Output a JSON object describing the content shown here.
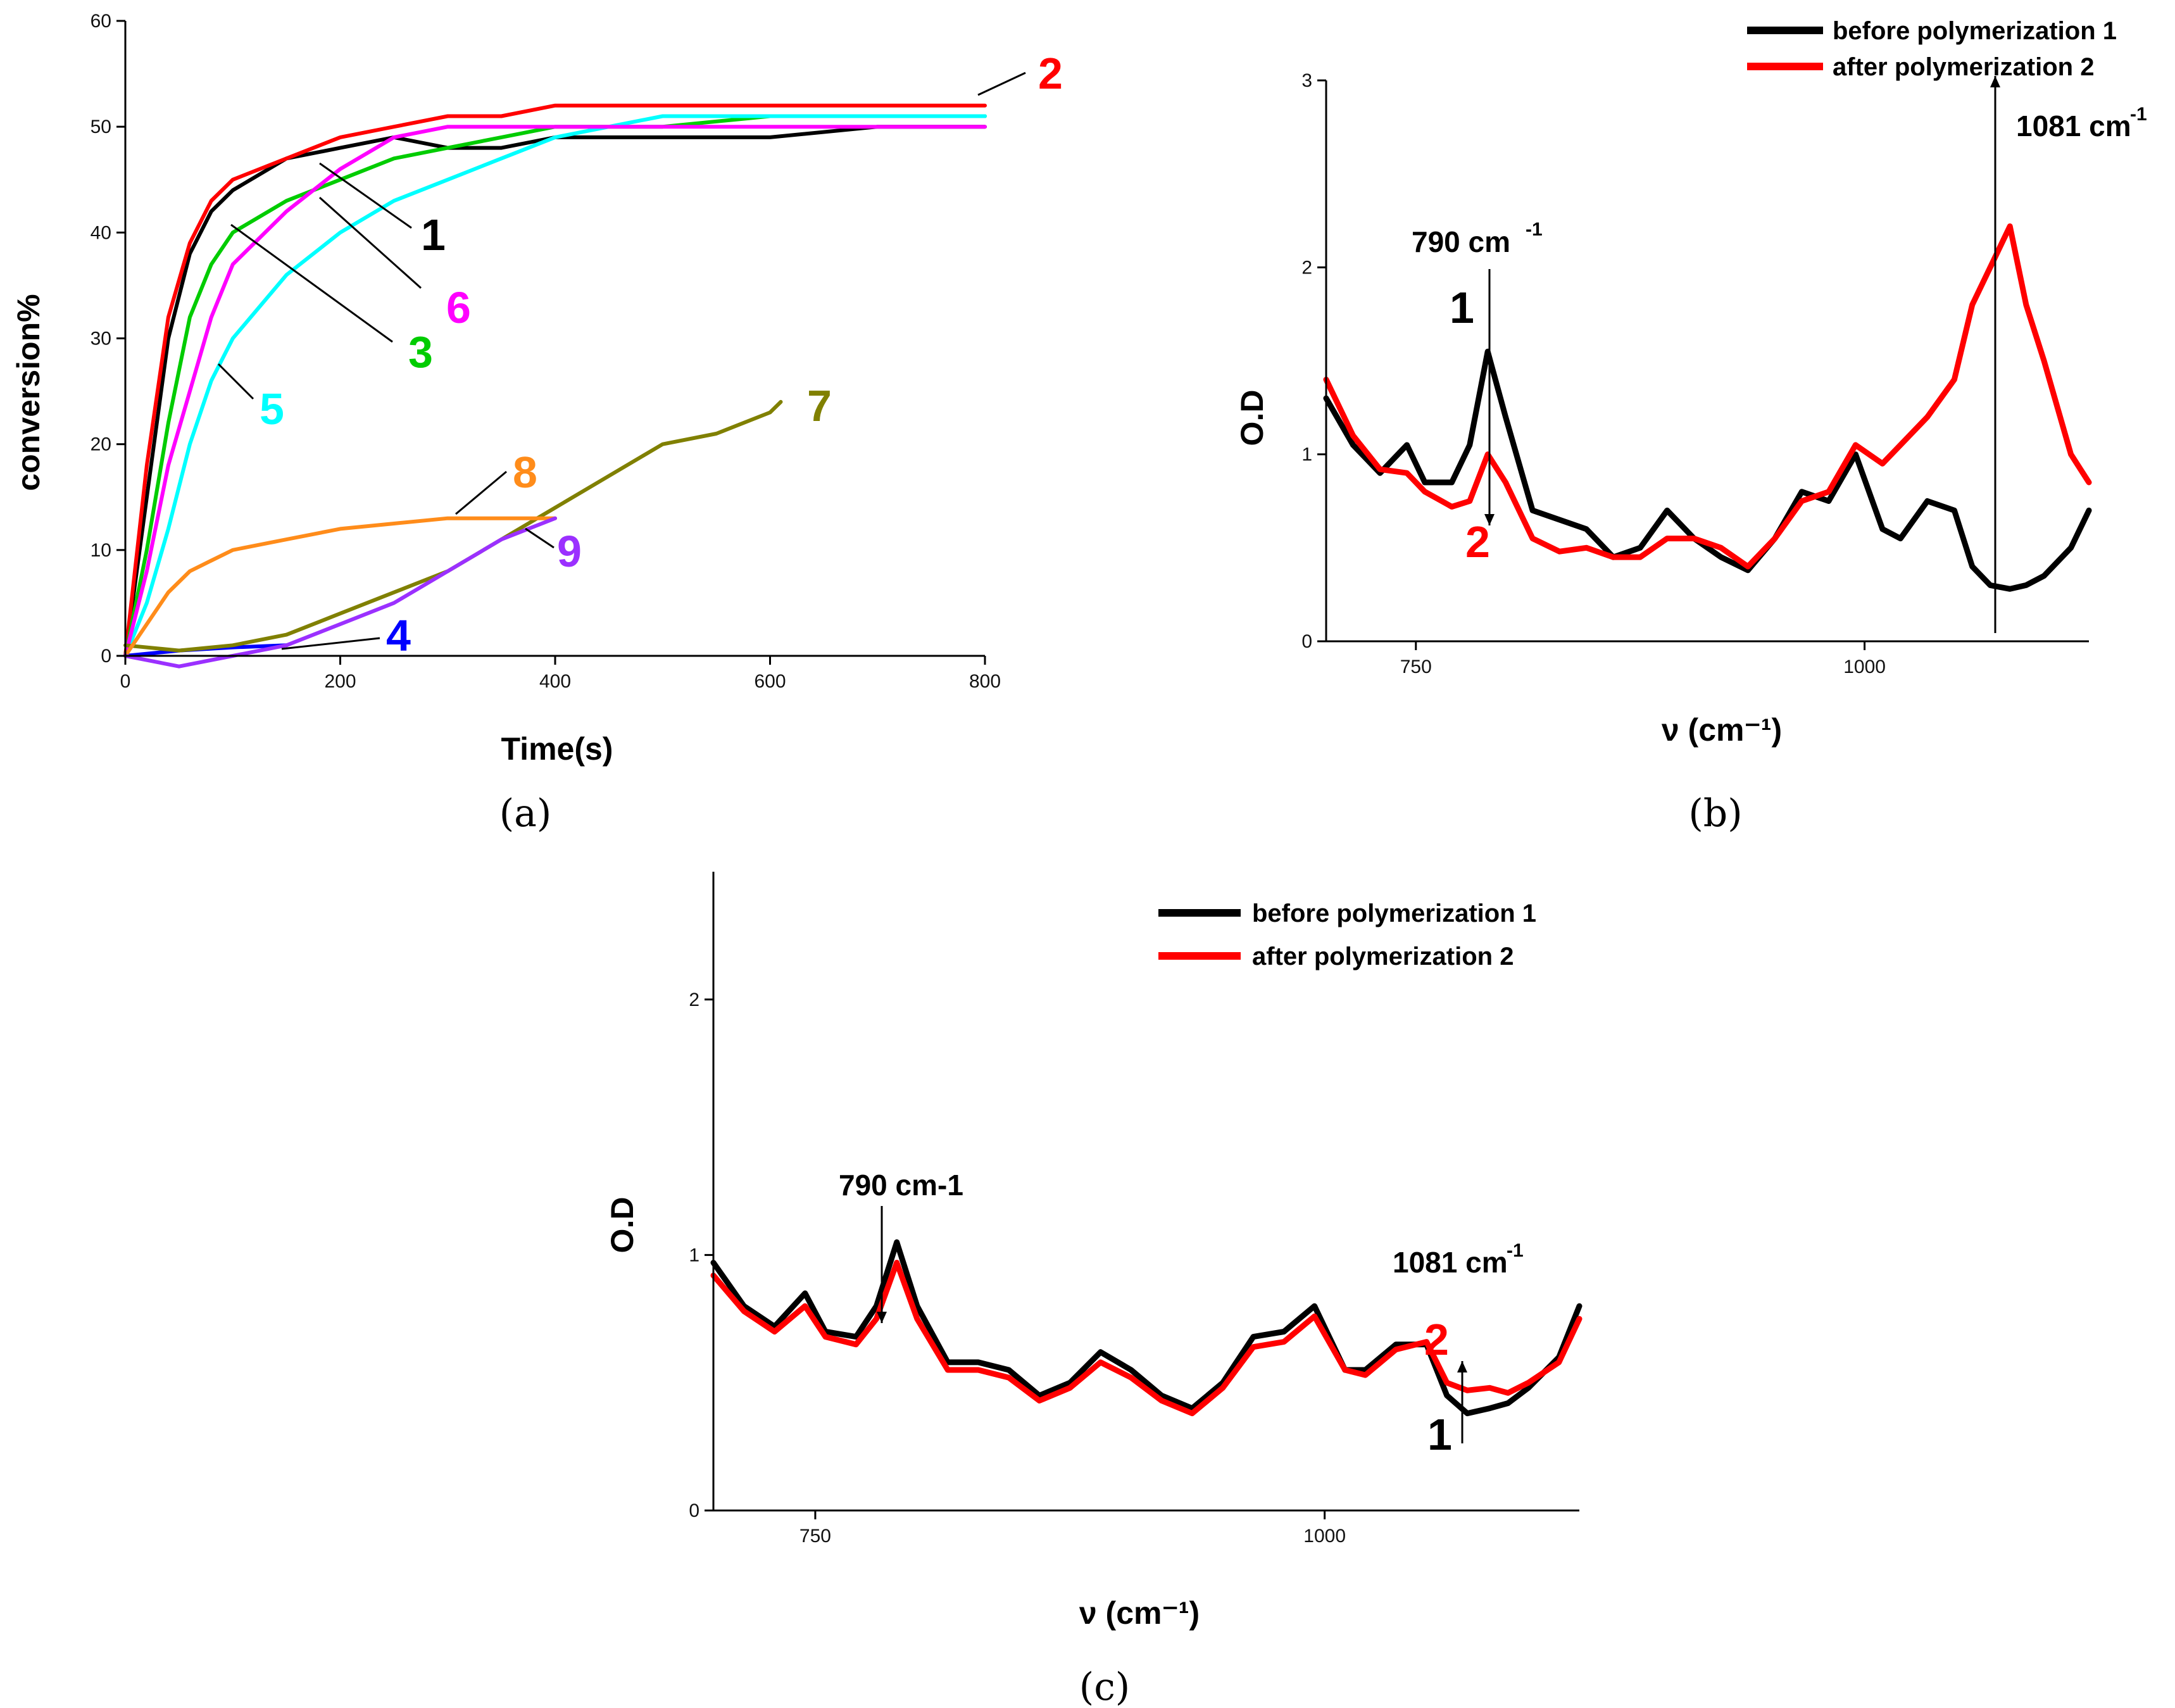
{
  "chart_data": [
    {
      "panel": "(a)",
      "type": "line",
      "title": "",
      "xlabel": "Time(s)",
      "ylabel": "conversion%",
      "xlim": [
        0,
        800
      ],
      "ylim": [
        0,
        60
      ],
      "xticks": [
        0,
        200,
        400,
        600,
        800
      ],
      "yticks": [
        0,
        10,
        20,
        30,
        40,
        50,
        60
      ],
      "grid": false,
      "series": [
        {
          "label": "1",
          "color": "#000000",
          "x": [
            0,
            20,
            40,
            60,
            80,
            100,
            150,
            200,
            250,
            300,
            350,
            400,
            500,
            600,
            700,
            800
          ],
          "y": [
            0,
            15,
            30,
            38,
            42,
            44,
            47,
            48,
            49,
            48,
            48,
            49,
            49,
            49,
            50,
            50
          ]
        },
        {
          "label": "2",
          "color": "#ff0000",
          "x": [
            0,
            20,
            40,
            60,
            80,
            100,
            150,
            200,
            250,
            300,
            350,
            400,
            500,
            600,
            700,
            800
          ],
          "y": [
            0,
            18,
            32,
            39,
            43,
            45,
            47,
            49,
            50,
            51,
            51,
            52,
            52,
            52,
            52,
            52
          ]
        },
        {
          "label": "3",
          "color": "#00cc00",
          "x": [
            0,
            20,
            40,
            60,
            80,
            100,
            150,
            200,
            250,
            300,
            350,
            400,
            500,
            600,
            700,
            800
          ],
          "y": [
            0,
            10,
            22,
            32,
            37,
            40,
            43,
            45,
            47,
            48,
            49,
            50,
            50,
            51,
            51,
            51
          ]
        },
        {
          "label": "4",
          "color": "#0000ff",
          "x": [
            0,
            50,
            100,
            150
          ],
          "y": [
            0,
            0.5,
            0.8,
            1
          ]
        },
        {
          "label": "5",
          "color": "#00ffff",
          "x": [
            0,
            20,
            40,
            60,
            80,
            100,
            150,
            200,
            250,
            300,
            350,
            400,
            450,
            500,
            600,
            700,
            800
          ],
          "y": [
            0,
            5,
            12,
            20,
            26,
            30,
            36,
            40,
            43,
            45,
            47,
            49,
            50,
            51,
            51,
            51,
            51
          ]
        },
        {
          "label": "6",
          "color": "#ff00ff",
          "x": [
            0,
            20,
            40,
            60,
            80,
            100,
            150,
            200,
            250,
            300,
            350,
            400,
            500,
            600,
            700,
            800
          ],
          "y": [
            0,
            8,
            18,
            25,
            32,
            37,
            42,
            46,
            49,
            50,
            50,
            50,
            50,
            50,
            50,
            50
          ]
        },
        {
          "label": "7",
          "color": "#808000",
          "x": [
            0,
            50,
            100,
            150,
            200,
            250,
            300,
            350,
            400,
            450,
            500,
            550,
            600,
            610
          ],
          "y": [
            1,
            0.5,
            1,
            2,
            4,
            6,
            8,
            11,
            14,
            17,
            20,
            21,
            23,
            24
          ]
        },
        {
          "label": "8",
          "color": "#ff8c1a",
          "x": [
            0,
            20,
            40,
            60,
            80,
            100,
            150,
            200,
            250,
            300,
            350,
            400
          ],
          "y": [
            0,
            3,
            6,
            8,
            9,
            10,
            11,
            12,
            12.5,
            13,
            13,
            13
          ]
        },
        {
          "label": "9",
          "color": "#9b30ff",
          "x": [
            0,
            50,
            100,
            150,
            200,
            250,
            300,
            350,
            400
          ],
          "y": [
            0,
            -1,
            0,
            1,
            3,
            5,
            8,
            11,
            13
          ]
        }
      ]
    },
    {
      "panel": "(b)",
      "type": "line",
      "title": "",
      "xlabel": "ν (cm⁻¹)",
      "ylabel": "O.D",
      "xlim": [
        700,
        1125
      ],
      "ylim": [
        0,
        3
      ],
      "xticks": [
        750,
        1000
      ],
      "yticks": [
        0,
        1,
        2,
        3
      ],
      "legend": {
        "position": "top-right",
        "entries": [
          "before polymerization 1",
          "after polymerization 2"
        ]
      },
      "grid": false,
      "series": [
        {
          "label": "1",
          "name": "before polymerization 1",
          "color": "#000000",
          "x": [
            700,
            715,
            730,
            745,
            755,
            770,
            780,
            790,
            800,
            815,
            830,
            845,
            860,
            875,
            890,
            905,
            920,
            935,
            950,
            965,
            980,
            995,
            1010,
            1020,
            1035,
            1050,
            1060,
            1070,
            1081,
            1090,
            1100,
            1115,
            1125
          ],
          "y": [
            1.3,
            1.05,
            0.9,
            1.05,
            0.85,
            0.85,
            1.05,
            1.55,
            1.2,
            0.7,
            0.65,
            0.6,
            0.45,
            0.5,
            0.7,
            0.55,
            0.45,
            0.38,
            0.55,
            0.8,
            0.75,
            1.0,
            0.6,
            0.55,
            0.75,
            0.7,
            0.4,
            0.3,
            0.28,
            0.3,
            0.35,
            0.5,
            0.7
          ]
        },
        {
          "label": "2",
          "name": "after polymerization 2",
          "color": "#ff0000",
          "x": [
            700,
            715,
            730,
            745,
            755,
            770,
            780,
            790,
            800,
            815,
            830,
            845,
            860,
            875,
            890,
            905,
            920,
            935,
            950,
            965,
            980,
            995,
            1010,
            1020,
            1035,
            1050,
            1060,
            1070,
            1081,
            1090,
            1100,
            1115,
            1125
          ],
          "y": [
            1.4,
            1.1,
            0.92,
            0.9,
            0.8,
            0.72,
            0.75,
            1.0,
            0.85,
            0.55,
            0.48,
            0.5,
            0.45,
            0.45,
            0.55,
            0.55,
            0.5,
            0.4,
            0.55,
            0.75,
            0.8,
            1.05,
            0.95,
            1.05,
            1.2,
            1.4,
            1.8,
            2.0,
            2.22,
            1.8,
            1.5,
            1.0,
            0.85
          ]
        }
      ],
      "annotations": [
        "790 cm",
        "-1",
        "1081 cm",
        "-1",
        "1",
        "2"
      ]
    },
    {
      "panel": "(c)",
      "type": "line",
      "title": "",
      "xlabel": "ν (cm⁻¹)",
      "ylabel": "O.D",
      "xlim": [
        700,
        1125
      ],
      "ylim": [
        0,
        2.5
      ],
      "xticks": [
        750,
        1000
      ],
      "yticks": [
        0,
        1,
        2
      ],
      "legend": {
        "position": "top-right",
        "entries": [
          "before polymerization 1",
          "after polymerization 2"
        ]
      },
      "grid": false,
      "series": [
        {
          "label": "1",
          "name": "before polymerization 1",
          "color": "#000000",
          "x": [
            700,
            715,
            730,
            745,
            755,
            770,
            780,
            790,
            800,
            815,
            830,
            845,
            860,
            875,
            890,
            905,
            920,
            935,
            950,
            965,
            980,
            995,
            1010,
            1020,
            1035,
            1050,
            1060,
            1070,
            1081,
            1090,
            1100,
            1115,
            1125
          ],
          "y": [
            0.97,
            0.8,
            0.72,
            0.85,
            0.7,
            0.68,
            0.8,
            1.05,
            0.8,
            0.58,
            0.58,
            0.55,
            0.45,
            0.5,
            0.62,
            0.55,
            0.45,
            0.4,
            0.5,
            0.68,
            0.7,
            0.8,
            0.55,
            0.55,
            0.65,
            0.65,
            0.45,
            0.38,
            0.4,
            0.42,
            0.48,
            0.6,
            0.8
          ]
        },
        {
          "label": "2",
          "name": "after polymerization 2",
          "color": "#ff0000",
          "x": [
            700,
            715,
            730,
            745,
            755,
            770,
            780,
            790,
            800,
            815,
            830,
            845,
            860,
            875,
            890,
            905,
            920,
            935,
            950,
            965,
            980,
            995,
            1010,
            1020,
            1035,
            1050,
            1060,
            1070,
            1081,
            1090,
            1100,
            1115,
            1125
          ],
          "y": [
            0.92,
            0.78,
            0.7,
            0.8,
            0.68,
            0.65,
            0.75,
            0.97,
            0.75,
            0.55,
            0.55,
            0.52,
            0.43,
            0.48,
            0.58,
            0.52,
            0.43,
            0.38,
            0.48,
            0.64,
            0.66,
            0.76,
            0.55,
            0.53,
            0.63,
            0.66,
            0.5,
            0.47,
            0.48,
            0.46,
            0.5,
            0.58,
            0.75
          ]
        }
      ],
      "annotations": [
        "790 cm-1",
        "1081 cm",
        "-1",
        "1",
        "2"
      ]
    }
  ]
}
